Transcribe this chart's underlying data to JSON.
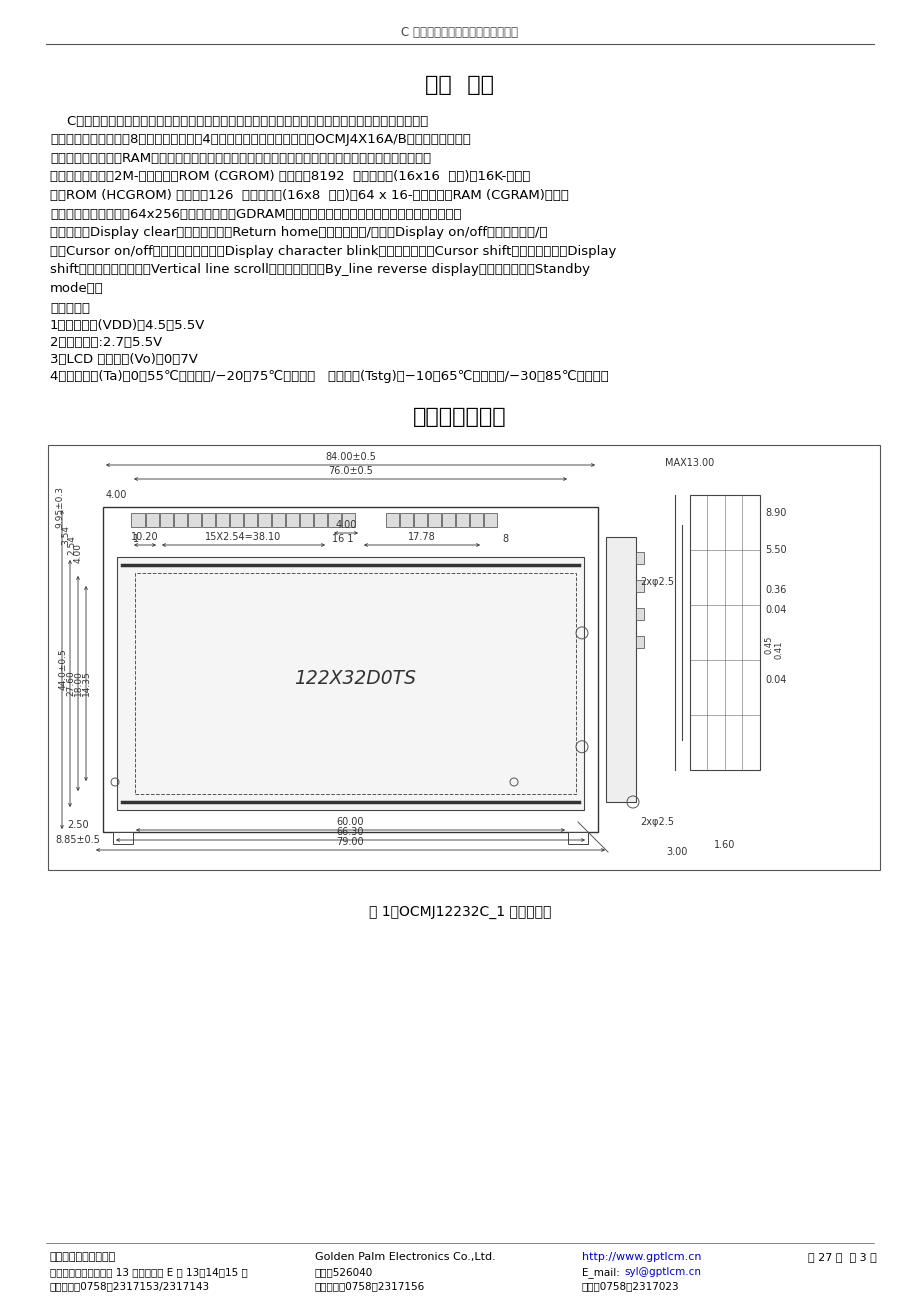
{
  "header_text": "C 系列中文液晶显示模块使用说明书",
  "section1_title": "一、  概述",
  "section1_body_lines": [
    "    C系列中文模块可以显示字母、数字符号、中文字型及图形，具有绘图及文字画面混合显示功能。提供",
    "三种控制接口，分别是8位微处理器接口，4位微处理器接口及串行接口（OCMJ4X16A/B无串行接口）。所",
    "有的功能，包含显示RAM，字型产生器，都包含在一个芯片里面。只要一个最小的微处理系统，就可以方",
    "便操作模块。内置2M-位中文字型ROM (CGROM) 总共提供8192  个中文字型(16x16  点阵)，16K-位半宽",
    "字型ROM (HCGROM) 总共提供126  个符号字型(16x8  点阵)，64 x 16-位字型产生RAM (CGRAM)。另外",
    "绘图显示画面提供一个64x256点的绘图区域（GDRAM），可以和文字画面混和显示。提供多功能指令：",
    "画面清除（Display clear）、光标归位（Return home）、显示打开/关闭（Display on/off）、光标显示/隐",
    "藏（Cursor on/off）、显示字符闪烁（Display character blink）、光标移位（Cursor shift）、显示移位（Display",
    "shift）、垂直画面卷动（Vertical line scroll）、反白显示（By_line reverse display）、待命模式（Standby",
    "mode）。"
  ],
  "params_title": "主要参数：",
  "params": [
    "1、工作电压(VDD)：4.5～5.5V",
    "2、逻辑电平:2.7～5.5V",
    "3、LCD 驱动电压(Vo)：0～7V",
    "4、工作温度(Ta)：0～55℃（常温）/−20～75℃（宽温）   保存温度(Tstg)：−10～65℃（常温）/−30～85℃（宽温）"
  ],
  "section2_title": "二、外形尺寸图",
  "figure_caption": "图 1：OCMJ12232C_1 外形尺寸图",
  "footer_col1_line1": "肇庆金鹏电子有限公司",
  "footer_col1_line2": "地址：肇庆市建设四路 13 号天宁广场 E 幢 13、14、15 楼",
  "footer_col1_line3": "业务联系：0758－2317153/2317143",
  "footer_col2_line1": "Golden Palm Electronics Co.,Ltd.",
  "footer_col2_line2": "邮编：526040",
  "footer_col2_line3": "技术支持：0758－2317156",
  "footer_col3_line1": "http://www.gptlcm.cn",
  "footer_col3_line2_pre": "E_mail: ",
  "footer_col3_line2_link": "syl@gptlcm.cn",
  "footer_col3_line3": "传真：0758－2317023",
  "footer_col4_line1": "共 27 页  第 3 页",
  "bg_color": "#ffffff",
  "text_color": "#000000",
  "link_color": "#0000cc"
}
